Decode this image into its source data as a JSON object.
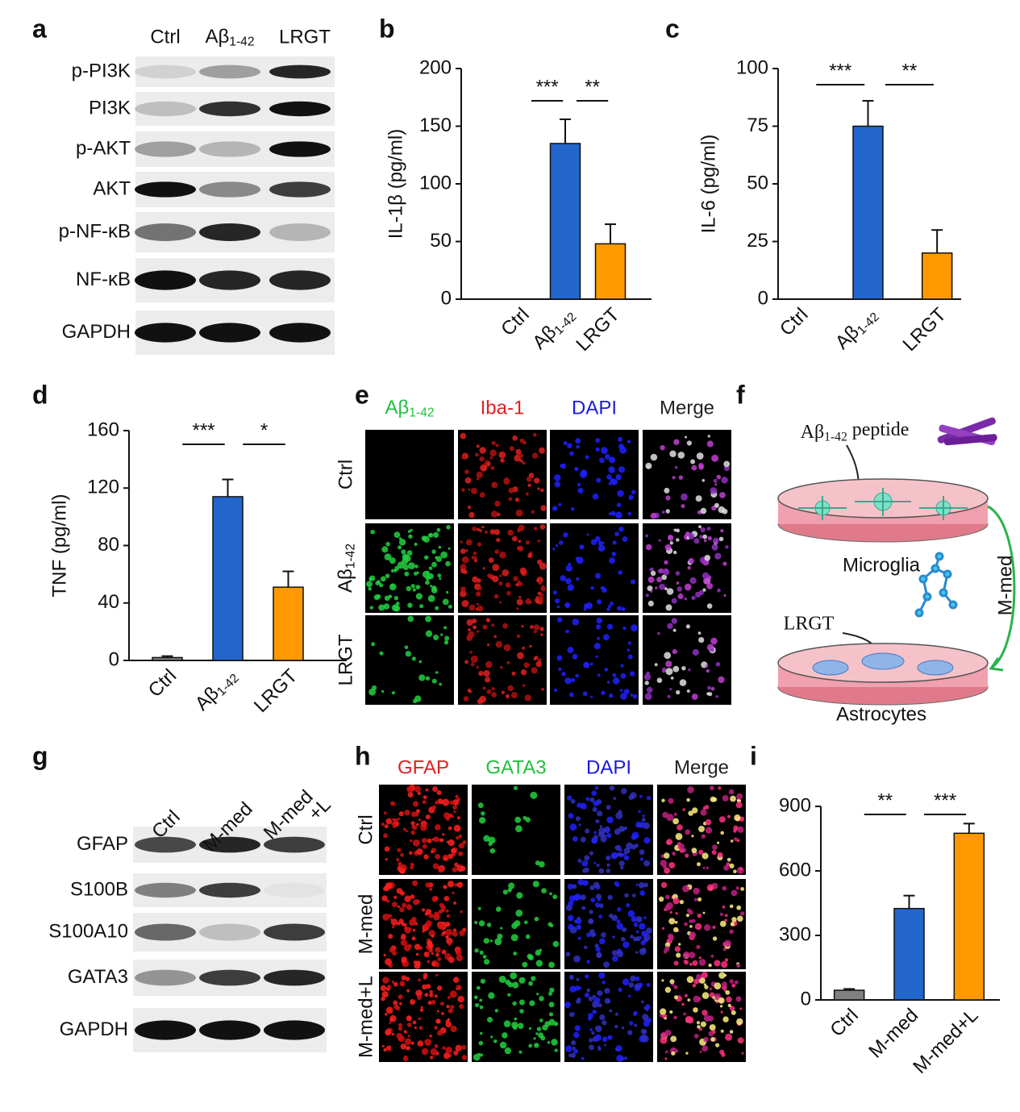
{
  "panel_labels": [
    "a",
    "b",
    "c",
    "d",
    "e",
    "f",
    "g",
    "h",
    "i"
  ],
  "blot_a": {
    "lanes": [
      "Ctrl",
      "Aβ1-42",
      "LRGT"
    ],
    "rows": [
      "p-PI3K",
      "PI3K",
      "p-AKT",
      "AKT",
      "p-NF-κB",
      "NF-κB",
      "GAPDH"
    ]
  },
  "chart_data": [
    {
      "type": "bar",
      "y_label": "IL-1β (pg/ml)",
      "categories": [
        "Ctrl",
        "Aβ1-42",
        "LRGT"
      ],
      "values": [
        0,
        135,
        48
      ],
      "errors": [
        0,
        21,
        17
      ],
      "colors": [
        "#808080",
        "#2266cc",
        "#ff9900"
      ],
      "ylim": [
        0,
        200
      ],
      "yticks": [
        0,
        50,
        100,
        150,
        200
      ],
      "significance": [
        {
          "pair": [
            "Ctrl",
            "Aβ1-42"
          ],
          "label": "***"
        },
        {
          "pair": [
            "Aβ1-42",
            "LRGT"
          ],
          "label": "**"
        }
      ]
    },
    {
      "type": "bar",
      "y_label": "IL-6 (pg/ml)",
      "categories": [
        "Ctrl",
        "Aβ1-42",
        "LRGT"
      ],
      "values": [
        0,
        75,
        20
      ],
      "errors": [
        0,
        11,
        10
      ],
      "colors": [
        "#808080",
        "#2266cc",
        "#ff9900"
      ],
      "ylim": [
        0,
        100
      ],
      "yticks": [
        0,
        25,
        50,
        75,
        100
      ],
      "significance": [
        {
          "pair": [
            "Ctrl",
            "Aβ1-42"
          ],
          "label": "***"
        },
        {
          "pair": [
            "Aβ1-42",
            "LRGT"
          ],
          "label": "**"
        }
      ]
    },
    {
      "type": "bar",
      "y_label": "TNF (pg/ml)",
      "categories": [
        "Ctrl",
        "Aβ1-42",
        "LRGT"
      ],
      "values": [
        2,
        114,
        51
      ],
      "errors": [
        1,
        12,
        11
      ],
      "colors": [
        "#808080",
        "#2266cc",
        "#ff9900"
      ],
      "ylim": [
        0,
        160
      ],
      "yticks": [
        0,
        40,
        80,
        120,
        160
      ],
      "significance": [
        {
          "pair": [
            "Ctrl",
            "Aβ1-42"
          ],
          "label": "***"
        },
        {
          "pair": [
            "Aβ1-42",
            "LRGT"
          ],
          "label": "*"
        }
      ]
    },
    {
      "type": "bar",
      "categories": [
        "Ctrl",
        "M-med",
        "M-med+L"
      ],
      "values": [
        45,
        425,
        775
      ],
      "errors": [
        6,
        60,
        45
      ],
      "colors": [
        "#808080",
        "#2266cc",
        "#ff9900"
      ],
      "ylim": [
        0,
        900
      ],
      "yticks": [
        0,
        300,
        600,
        900
      ],
      "significance": [
        {
          "pair": [
            "Ctrl",
            "M-med"
          ],
          "label": "**"
        },
        {
          "pair": [
            "M-med",
            "M-med+L"
          ],
          "label": "***"
        }
      ]
    }
  ],
  "image_e": {
    "columns": [
      "Aβ1-42",
      "Iba-1",
      "DAPI",
      "Merge"
    ],
    "rows": [
      "Ctrl",
      "Aβ1-42",
      "LRGT"
    ]
  },
  "schematic_f": {
    "peptide": "Aβ1-42 peptide",
    "top_cells": "Microglia",
    "transfer": "M-med",
    "drug": "LRGT",
    "bottom_cells": "Astrocytes"
  },
  "blot_g": {
    "lanes": [
      "Ctrl",
      "M-med",
      [
        "M-med",
        "+L"
      ]
    ],
    "rows": [
      "GFAP",
      "S100B",
      "S100A10",
      "GATA3",
      "GAPDH"
    ]
  },
  "image_h": {
    "columns": [
      "GFAP",
      "GATA3",
      "DAPI",
      "Merge"
    ],
    "rows": [
      "Ctrl",
      "M-med",
      "M-med+L"
    ]
  }
}
